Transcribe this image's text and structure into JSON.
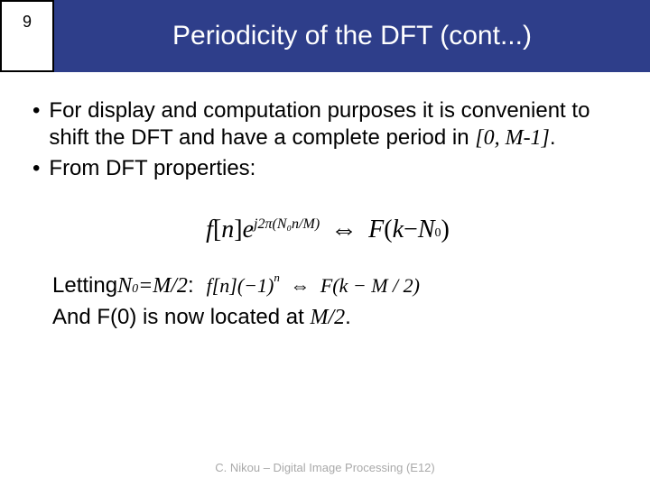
{
  "header": {
    "slide_number": "9",
    "title": "Periodicity of the DFT (cont...)",
    "number_box_bg": "#ffffff",
    "number_box_border": "#000000",
    "title_bg": "#2e3e8a",
    "title_color": "#ffffff"
  },
  "bullets": {
    "b1_prefix": "For display and computation purposes it is convenient to shift the DFT and have a complete period in ",
    "b1_range": "[0, M-1]",
    "b1_suffix": ".",
    "b2": "From DFT properties:"
  },
  "formula1": {
    "lhs_func": "f",
    "lhs_arg_open": "[",
    "lhs_var": "n",
    "lhs_arg_close": "]",
    "exp_base": "e",
    "exp_text": "j2π(N₀n/M)",
    "arrow": "⇔",
    "rhs_func": "F",
    "rhs_open": "(",
    "rhs_k": "k",
    "rhs_minus": " − ",
    "rhs_N": "N",
    "rhs_sub0": "0",
    "rhs_close": ")"
  },
  "lower": {
    "letting_prefix": "Letting ",
    "letting_var": "N",
    "letting_sub": "0",
    "letting_eq": "=M/2",
    "letting_suffix": ":",
    "inline_lhs": "f[n](−1)",
    "inline_exp": "n",
    "inline_arrow": "⇔",
    "inline_rhs": "F(k − M / 2)",
    "line2_prefix": "And F(0) is now located at ",
    "line2_mhalf": "M/2",
    "line2_suffix": "."
  },
  "footer": {
    "text": "C. Nikou – Digital Image Processing (E12)",
    "color": "#a9a9a9"
  },
  "colors": {
    "page_bg": "#ffffff",
    "text": "#000000"
  }
}
